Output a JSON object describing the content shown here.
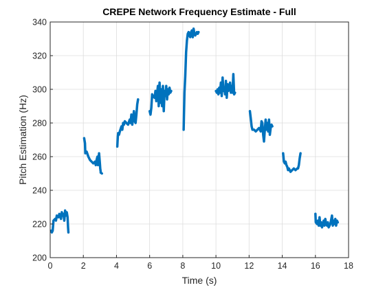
{
  "chart_data": {
    "type": "line",
    "title": "CREPE Network Frequency Estimate - Full",
    "xlabel": "Time (s)",
    "ylabel": "Pitch Estimation (Hz)",
    "xlim": [
      0,
      18
    ],
    "ylim": [
      200,
      340
    ],
    "xticks": [
      0,
      2,
      4,
      6,
      8,
      10,
      12,
      14,
      16,
      18
    ],
    "yticks": [
      200,
      220,
      240,
      260,
      280,
      300,
      320,
      340
    ],
    "grid": true,
    "line_color": "#0072BD",
    "series": [
      {
        "segments": [
          [
            [
              0.05,
              216
            ],
            [
              0.1,
              215
            ],
            [
              0.15,
              216
            ],
            [
              0.2,
              222
            ],
            [
              0.3,
              223
            ],
            [
              0.35,
              222
            ],
            [
              0.4,
              225
            ],
            [
              0.5,
              224
            ],
            [
              0.55,
              226
            ],
            [
              0.6,
              225
            ],
            [
              0.65,
              223
            ],
            [
              0.7,
              227
            ],
            [
              0.75,
              225
            ],
            [
              0.8,
              226
            ],
            [
              0.85,
              222
            ],
            [
              0.9,
              228
            ],
            [
              0.95,
              225
            ],
            [
              1.0,
              227
            ],
            [
              1.05,
              224
            ],
            [
              1.08,
              218
            ],
            [
              1.1,
              215
            ]
          ],
          [
            [
              2.05,
              271
            ],
            [
              2.1,
              268
            ],
            [
              2.12,
              262
            ],
            [
              2.2,
              263
            ],
            [
              2.3,
              260
            ],
            [
              2.4,
              258
            ],
            [
              2.5,
              257
            ],
            [
              2.6,
              256
            ],
            [
              2.7,
              257
            ],
            [
              2.75,
              255
            ],
            [
              2.8,
              258
            ],
            [
              2.85,
              260
            ],
            [
              2.88,
              255
            ],
            [
              2.9,
              257
            ],
            [
              2.95,
              262
            ],
            [
              3.0,
              256
            ],
            [
              3.02,
              253
            ],
            [
              3.05,
              251
            ]
          ],
          [
            [
              3.05,
              250.5
            ],
            [
              3.12,
              250
            ]
          ],
          [
            [
              4.05,
              266
            ],
            [
              4.08,
              272
            ],
            [
              4.1,
              274
            ],
            [
              4.15,
              273
            ],
            [
              4.2,
              275
            ],
            [
              4.3,
              278
            ],
            [
              4.35,
              276
            ],
            [
              4.4,
              280
            ],
            [
              4.45,
              279
            ],
            [
              4.5,
              281
            ],
            [
              4.6,
              280
            ],
            [
              4.7,
              279
            ],
            [
              4.8,
              282
            ],
            [
              4.85,
              280
            ],
            [
              4.9,
              285
            ],
            [
              4.95,
              279
            ],
            [
              5.0,
              283
            ],
            [
              5.05,
              287
            ],
            [
              5.1,
              281
            ],
            [
              5.15,
              280
            ],
            [
              5.2,
              285
            ],
            [
              5.25,
              291
            ],
            [
              5.3,
              294
            ]
          ],
          [
            [
              6.0,
              287
            ],
            [
              6.05,
              285
            ],
            [
              6.1,
              289
            ],
            [
              6.15,
              297
            ],
            [
              6.2,
              296
            ],
            [
              6.3,
              295
            ],
            [
              6.35,
              299
            ],
            [
              6.4,
              293
            ],
            [
              6.5,
              302
            ],
            [
              6.55,
              290
            ],
            [
              6.6,
              304
            ],
            [
              6.65,
              292
            ],
            [
              6.7,
              300
            ],
            [
              6.75,
              290
            ],
            [
              6.8,
              302
            ],
            [
              6.85,
              287
            ],
            [
              6.9,
              299
            ],
            [
              6.95,
              296
            ],
            [
              7.0,
              302
            ],
            [
              7.05,
              294
            ],
            [
              7.1,
              300
            ],
            [
              7.15,
              297
            ],
            [
              7.2,
              301
            ],
            [
              7.25,
              298
            ],
            [
              7.3,
              299
            ]
          ],
          [
            [
              8.05,
              276
            ],
            [
              8.1,
              298
            ],
            [
              8.15,
              308
            ],
            [
              8.2,
              322
            ],
            [
              8.25,
              329
            ],
            [
              8.3,
              333
            ],
            [
              8.35,
              334
            ],
            [
              8.4,
              332
            ],
            [
              8.45,
              331
            ],
            [
              8.5,
              334
            ],
            [
              8.55,
              335
            ],
            [
              8.6,
              331
            ],
            [
              8.65,
              336
            ],
            [
              8.7,
              333
            ],
            [
              8.75,
              332
            ],
            [
              8.8,
              333
            ],
            [
              8.85,
              334
            ],
            [
              8.9,
              333
            ],
            [
              8.95,
              334
            ]
          ],
          [
            [
              10.0,
              299
            ],
            [
              10.05,
              298
            ],
            [
              10.1,
              300
            ],
            [
              10.15,
              297
            ],
            [
              10.2,
              301
            ],
            [
              10.25,
              298
            ],
            [
              10.3,
              304
            ],
            [
              10.35,
              296
            ],
            [
              10.4,
              307
            ],
            [
              10.45,
              299
            ],
            [
              10.5,
              301
            ],
            [
              10.55,
              297
            ],
            [
              10.6,
              305
            ],
            [
              10.65,
              295
            ],
            [
              10.7,
              303
            ],
            [
              10.75,
              299
            ],
            [
              10.8,
              300
            ],
            [
              10.85,
              304
            ],
            [
              10.9,
              298
            ],
            [
              10.95,
              302
            ],
            [
              11.0,
              298
            ],
            [
              11.05,
              309
            ],
            [
              11.1,
              297
            ],
            [
              11.15,
              298
            ]
          ],
          [
            [
              12.05,
              287
            ],
            [
              12.1,
              283
            ],
            [
              12.15,
              278
            ],
            [
              12.2,
              276
            ],
            [
              12.3,
              276
            ],
            [
              12.4,
              275
            ],
            [
              12.5,
              276
            ],
            [
              12.6,
              277
            ],
            [
              12.7,
              275
            ],
            [
              12.75,
              281
            ],
            [
              12.8,
              280
            ],
            [
              12.85,
              273
            ],
            [
              12.9,
              269
            ],
            [
              12.95,
              276
            ],
            [
              13.0,
              282
            ],
            [
              13.05,
              276
            ],
            [
              13.1,
              280
            ],
            [
              13.15,
              275
            ],
            [
              13.2,
              282
            ],
            [
              13.25,
              273
            ],
            [
              13.3,
              277
            ],
            [
              13.35,
              279
            ],
            [
              13.4,
              278
            ]
          ],
          [
            [
              14.05,
              262
            ],
            [
              14.1,
              257
            ],
            [
              14.15,
              256
            ],
            [
              14.2,
              257
            ],
            [
              14.25,
              255
            ],
            [
              14.3,
              254
            ],
            [
              14.35,
              252
            ],
            [
              14.4,
              253
            ],
            [
              14.5,
              251
            ],
            [
              14.6,
              252
            ],
            [
              14.7,
              253
            ],
            [
              14.8,
              252
            ],
            [
              14.9,
              253
            ],
            [
              14.95,
              253
            ],
            [
              15.0,
              255
            ],
            [
              15.05,
              259
            ],
            [
              15.1,
              262
            ]
          ],
          [
            [
              16.0,
              226
            ],
            [
              16.02,
              221
            ],
            [
              16.1,
              220
            ],
            [
              16.15,
              222
            ],
            [
              16.2,
              219
            ],
            [
              16.25,
              224
            ],
            [
              16.3,
              219
            ],
            [
              16.35,
              221
            ],
            [
              16.4,
              218
            ],
            [
              16.5,
              222
            ],
            [
              16.55,
              219
            ],
            [
              16.6,
              223
            ],
            [
              16.65,
              220
            ],
            [
              16.7,
              219
            ],
            [
              16.75,
              221
            ],
            [
              16.8,
              218
            ],
            [
              16.9,
              220
            ],
            [
              17.0,
              225
            ],
            [
              17.05,
              219
            ],
            [
              17.1,
              222
            ],
            [
              17.15,
              220
            ],
            [
              17.2,
              223
            ],
            [
              17.25,
              219
            ],
            [
              17.3,
              222
            ],
            [
              17.35,
              221
            ]
          ]
        ]
      }
    ]
  }
}
